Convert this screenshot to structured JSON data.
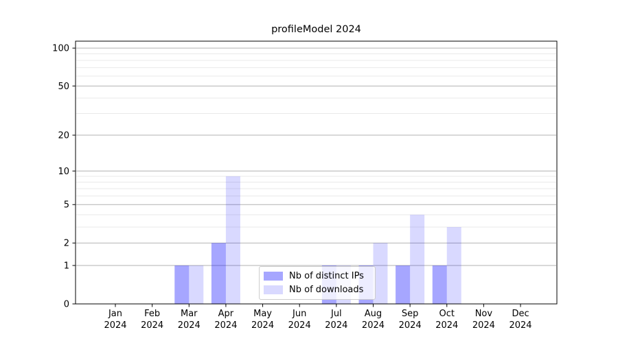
{
  "chart_data": {
    "type": "bar",
    "title": "profileModel 2024",
    "categories": [
      {
        "month": "Jan",
        "year": "2024"
      },
      {
        "month": "Feb",
        "year": "2024"
      },
      {
        "month": "Mar",
        "year": "2024"
      },
      {
        "month": "Apr",
        "year": "2024"
      },
      {
        "month": "May",
        "year": "2024"
      },
      {
        "month": "Jun",
        "year": "2024"
      },
      {
        "month": "Jul",
        "year": "2024"
      },
      {
        "month": "Aug",
        "year": "2024"
      },
      {
        "month": "Sep",
        "year": "2024"
      },
      {
        "month": "Oct",
        "year": "2024"
      },
      {
        "month": "Nov",
        "year": "2024"
      },
      {
        "month": "Dec",
        "year": "2024"
      }
    ],
    "series": [
      {
        "name": "Nb of distinct IPs",
        "color": "rgba(0,0,255,0.35)",
        "values": [
          0,
          0,
          1,
          2,
          0,
          0,
          1,
          1,
          1,
          1,
          0,
          0
        ]
      },
      {
        "name": "Nb of downloads",
        "color": "rgba(0,0,255,0.15)",
        "values": [
          0,
          0,
          1,
          9,
          0,
          0,
          1,
          2,
          4,
          3,
          0,
          0
        ]
      }
    ],
    "yscale": "log1p",
    "ylim": [
      0,
      113.5
    ],
    "yticks": [
      0,
      1,
      2,
      5,
      10,
      20,
      50,
      100
    ],
    "minor_yticks": [
      3,
      4,
      6,
      7,
      8,
      9,
      30,
      40,
      60,
      70,
      80,
      90
    ],
    "grid": true,
    "legend_position": "lower center",
    "colors": {
      "major_grid": "#b2b2b2",
      "minor_grid": "#e9e9e9",
      "axis": "#000000",
      "text": "#000000"
    }
  }
}
